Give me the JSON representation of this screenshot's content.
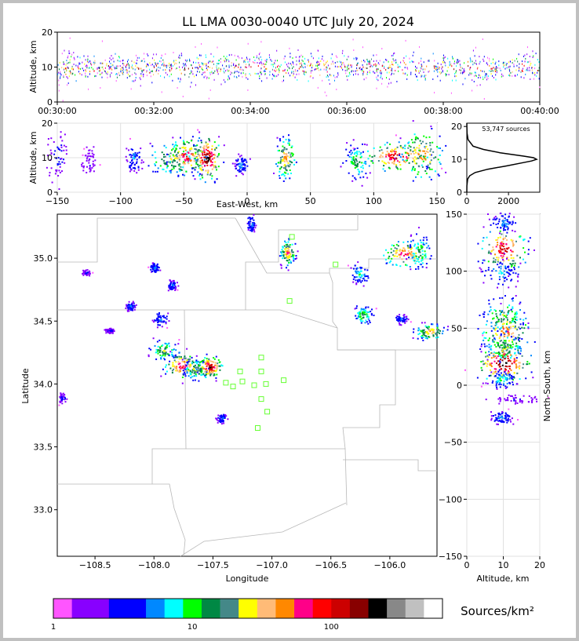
{
  "chart_data": [
    {
      "id": "time_height",
      "type": "scatter",
      "title": "LL LMA 0030-0040 UTC July 20, 2024",
      "ylabel": "Altitude, km",
      "x_ticks": [
        "00:30:00",
        "00:32:00",
        "00:34:00",
        "00:36:00",
        "00:38:00",
        "00:40:00"
      ],
      "xlim": [
        "00:30:00",
        "00:40:00"
      ],
      "y_ticks": [
        0,
        10,
        20
      ],
      "ylim": [
        0,
        20
      ],
      "grid": false,
      "sources": "continuous band of sources across all times, concentrated between about 7 and 14 km altitude"
    },
    {
      "id": "east_west_height",
      "type": "heatmap",
      "xlabel": "East-West, km",
      "ylabel": "Altitude, km",
      "x_ticks": [
        -150,
        -100,
        -50,
        0,
        50,
        100,
        150
      ],
      "xlim": [
        -150,
        150
      ],
      "y_ticks": [
        0,
        10,
        20
      ],
      "ylim": [
        0,
        20
      ],
      "grid": true,
      "clusters": [
        {
          "x": -150,
          "y": 11,
          "wx": 4,
          "wy": 4,
          "peak": 0.2
        },
        {
          "x": -125,
          "y": 9,
          "wx": 3,
          "wy": 2,
          "peak": 0.15
        },
        {
          "x": -90,
          "y": 10,
          "wx": 3,
          "wy": 2,
          "peak": 0.3
        },
        {
          "x": -60,
          "y": 10,
          "wx": 10,
          "wy": 2.5,
          "peak": 0.6
        },
        {
          "x": -48,
          "y": 10.5,
          "wx": 7,
          "wy": 2.5,
          "peak": 0.85
        },
        {
          "x": -32,
          "y": 10,
          "wx": 5,
          "wy": 3,
          "peak": 1.0
        },
        {
          "x": -5,
          "y": 8,
          "wx": 3,
          "wy": 1.5,
          "peak": 0.3
        },
        {
          "x": 30,
          "y": 10,
          "wx": 4,
          "wy": 3,
          "peak": 0.7
        },
        {
          "x": 86,
          "y": 9,
          "wx": 5,
          "wy": 2.5,
          "peak": 0.5
        },
        {
          "x": 118,
          "y": 10.5,
          "wx": 12,
          "wy": 2,
          "peak": 0.9
        },
        {
          "x": 138,
          "y": 11,
          "wx": 8,
          "wy": 3.5,
          "peak": 0.75
        }
      ]
    },
    {
      "id": "altitude_histogram",
      "type": "line",
      "annotation": "53,747 sources",
      "x_ticks": [
        0,
        2000
      ],
      "xlim": [
        0,
        3500
      ],
      "y_ticks": [
        0,
        10,
        20
      ],
      "ylim": [
        0,
        21
      ],
      "series": [
        {
          "altitude": [
            0,
            2,
            4,
            5,
            6,
            7,
            8,
            9,
            9.5,
            10,
            10.5,
            11,
            12,
            13,
            14,
            16,
            18,
            21
          ],
          "count": [
            0,
            5,
            40,
            140,
            400,
            1000,
            1900,
            2700,
            3100,
            3350,
            3200,
            2700,
            1600,
            800,
            300,
            60,
            10,
            0
          ]
        }
      ]
    },
    {
      "id": "plan_view",
      "type": "heatmap",
      "xlabel": "Longitude",
      "ylabel": "Latitude",
      "x_ticks": [
        -108.5,
        -108.0,
        -107.5,
        -107.0,
        -106.5,
        -106.0
      ],
      "xlim": [
        -108.82,
        -105.6
      ],
      "y_ticks": [
        33.0,
        33.5,
        34.0,
        34.5,
        35.0
      ],
      "ylim": [
        32.63,
        35.35
      ],
      "grid": false,
      "clusters": [
        {
          "lon": -108.78,
          "lat": 33.89,
          "wx": 0.02,
          "wy": 0.02,
          "peak": 0.2
        },
        {
          "lon": -108.58,
          "lat": 34.89,
          "wx": 0.02,
          "wy": 0.01,
          "peak": 0.2
        },
        {
          "lon": -108.38,
          "lat": 34.43,
          "wx": 0.02,
          "wy": 0.01,
          "peak": 0.2
        },
        {
          "lon": -108.2,
          "lat": 34.62,
          "wx": 0.02,
          "wy": 0.02,
          "peak": 0.3
        },
        {
          "lon": -108.0,
          "lat": 34.93,
          "wx": 0.02,
          "wy": 0.02,
          "peak": 0.3
        },
        {
          "lon": -107.85,
          "lat": 34.79,
          "wx": 0.02,
          "wy": 0.02,
          "peak": 0.3
        },
        {
          "lon": -107.95,
          "lat": 34.52,
          "wx": 0.03,
          "wy": 0.03,
          "peak": 0.3
        },
        {
          "lon": -107.92,
          "lat": 34.27,
          "wx": 0.06,
          "wy": 0.04,
          "peak": 0.55
        },
        {
          "lon": -107.77,
          "lat": 34.15,
          "wx": 0.07,
          "wy": 0.05,
          "peak": 0.85
        },
        {
          "lon": -107.65,
          "lat": 34.12,
          "wx": 0.05,
          "wy": 0.04,
          "peak": 0.6
        },
        {
          "lon": -107.53,
          "lat": 34.14,
          "wx": 0.05,
          "wy": 0.04,
          "peak": 0.95
        },
        {
          "lon": -107.43,
          "lat": 33.73,
          "wx": 0.02,
          "wy": 0.02,
          "peak": 0.3
        },
        {
          "lon": -107.18,
          "lat": 35.28,
          "wx": 0.02,
          "wy": 0.04,
          "peak": 0.3
        },
        {
          "lon": -106.87,
          "lat": 35.05,
          "wx": 0.03,
          "wy": 0.05,
          "peak": 0.75
        },
        {
          "lon": -106.26,
          "lat": 34.88,
          "wx": 0.04,
          "wy": 0.04,
          "peak": 0.4
        },
        {
          "lon": -106.23,
          "lat": 34.55,
          "wx": 0.04,
          "wy": 0.04,
          "peak": 0.5
        },
        {
          "lon": -105.88,
          "lat": 35.04,
          "wx": 0.09,
          "wy": 0.05,
          "peak": 0.8
        },
        {
          "lon": -105.75,
          "lat": 35.05,
          "wx": 0.05,
          "wy": 0.07,
          "peak": 0.5
        },
        {
          "lon": -105.91,
          "lat": 34.52,
          "wx": 0.03,
          "wy": 0.02,
          "peak": 0.3
        },
        {
          "lon": -105.66,
          "lat": 34.42,
          "wx": 0.06,
          "wy": 0.03,
          "peak": 0.7
        }
      ],
      "stations": [
        {
          "lon": -106.83,
          "lat": 35.17
        },
        {
          "lon": -106.46,
          "lat": 34.95
        },
        {
          "lon": -106.85,
          "lat": 34.66
        },
        {
          "lon": -107.09,
          "lat": 34.21
        },
        {
          "lon": -107.27,
          "lat": 34.1
        },
        {
          "lon": -107.09,
          "lat": 34.1
        },
        {
          "lon": -107.39,
          "lat": 34.01
        },
        {
          "lon": -107.25,
          "lat": 34.02
        },
        {
          "lon": -107.33,
          "lat": 33.98
        },
        {
          "lon": -107.15,
          "lat": 33.99
        },
        {
          "lon": -107.05,
          "lat": 34.0
        },
        {
          "lon": -106.9,
          "lat": 34.03
        },
        {
          "lon": -107.09,
          "lat": 33.88
        },
        {
          "lon": -107.04,
          "lat": 33.78
        },
        {
          "lon": -107.12,
          "lat": 33.65
        }
      ]
    },
    {
      "id": "north_south_height",
      "type": "heatmap",
      "xlabel": "Altitude, km",
      "ylabel": "North-South, km",
      "x_ticks": [
        0,
        10,
        20
      ],
      "xlim": [
        0,
        20
      ],
      "y_ticks": [
        -150,
        -100,
        -50,
        0,
        50,
        100,
        150
      ],
      "ylim": [
        -150,
        150
      ],
      "grid": true,
      "clusters": [
        {
          "x": 10,
          "y": 143,
          "wx": 2,
          "wy": 5,
          "peak": 0.3
        },
        {
          "x": 10,
          "y": 120,
          "wx": 3,
          "wy": 9,
          "peak": 0.9
        },
        {
          "x": 9,
          "y": 100,
          "wx": 2.5,
          "wy": 6,
          "peak": 0.35
        },
        {
          "x": 10,
          "y": 62,
          "wx": 3,
          "wy": 8,
          "peak": 0.55
        },
        {
          "x": 10.5,
          "y": 48,
          "wx": 3.5,
          "wy": 9,
          "peak": 0.75
        },
        {
          "x": 10,
          "y": 33,
          "wx": 2.5,
          "wy": 6,
          "peak": 0.6
        },
        {
          "x": 10,
          "y": 20,
          "wx": 3.5,
          "wy": 8,
          "peak": 1.0
        },
        {
          "x": 9.5,
          "y": 6,
          "wx": 2,
          "wy": 4,
          "peak": 0.4
        },
        {
          "x": 13,
          "y": -12,
          "wx": 3,
          "wy": 2,
          "peak": 0.15
        },
        {
          "x": 9.5,
          "y": -28,
          "wx": 1.5,
          "wy": 3,
          "peak": 0.3
        }
      ]
    }
  ],
  "colorbar": {
    "label": "Sources/km²",
    "tick_labels": [
      "1",
      "10",
      "100"
    ],
    "colors": [
      "#ff55ff",
      "#8800ff",
      "#8800ff",
      "#0000ff",
      "#0000ff",
      "#0088ff",
      "#00ffff",
      "#00ff00",
      "#008844",
      "#448888",
      "#ffff00",
      "#ffbb77",
      "#ff8800",
      "#ff0088",
      "#ff0000",
      "#cc0000",
      "#880000",
      "#000000",
      "#888888",
      "#c0c0c0",
      "#ffffff"
    ]
  }
}
